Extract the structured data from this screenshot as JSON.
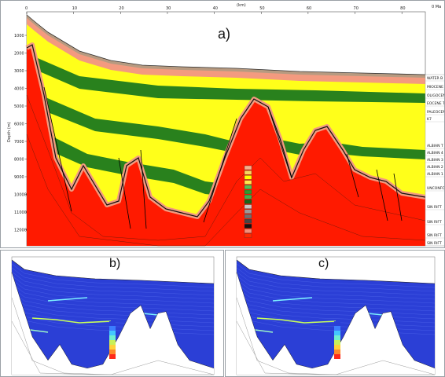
{
  "panels": {
    "a": {
      "label": "a)",
      "x_axis": {
        "title": "(km)",
        "ticks": [
          "0",
          "10",
          "20",
          "30",
          "40",
          "50",
          "60",
          "70",
          "80"
        ]
      },
      "y_axis": {
        "title": "Depth (m)",
        "ticks": [
          "1000",
          "2000",
          "3000",
          "4000",
          "5000",
          "6000",
          "7000",
          "8000",
          "9000",
          "10000",
          "11000",
          "12000"
        ]
      },
      "corner_label": "0 Ma",
      "right_labels": [
        "WATER B",
        "MIOCENE",
        "OLIGOCEN",
        "EOCENE T",
        "PALEOCEN",
        "K7",
        "ALBIAN T",
        "ALBIAN 4",
        "ALBIAN 3",
        "ALBIAN 2",
        "ALBIAN 1",
        "UNCONFO",
        "SIN RIFT",
        "SIN RIFT",
        "SIN RIFT",
        "SIN RIFT"
      ],
      "legend_colors": [
        "#f5b08a",
        "#f7d560",
        "#ffff00",
        "#ffe94d",
        "#52c152",
        "#2e9b2e",
        "#3cb44b",
        "#16661a",
        "#c8c8c8",
        "#9a9a9a",
        "#6f6f6f",
        "#454545",
        "#111111",
        "#f3907a",
        "#ff2a00"
      ]
    },
    "b": {
      "label": "b)"
    },
    "c": {
      "label": "c)"
    }
  },
  "colors": {
    "basement": "#ff1a00",
    "cover_green": "#1e7a1e",
    "cover_yellow": "#ffff1a",
    "salmon": "#f39a7f",
    "property_blue": "#2b3fd6",
    "sea": "#ffffff"
  }
}
